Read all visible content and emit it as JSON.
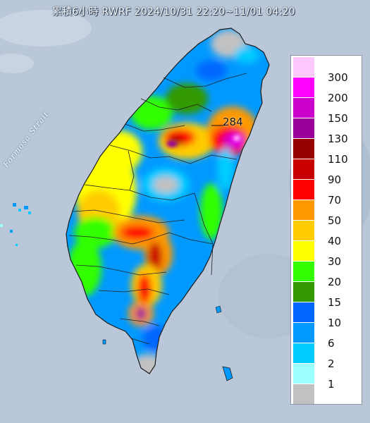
{
  "header": {
    "title": "累積6小時 RWRF 2024/10/31 22:20~11/01 04:20"
  },
  "map": {
    "strait_label": "Formosa Strait",
    "max_marker_value": "284"
  },
  "legend": {
    "items": [
      {
        "label": "300",
        "color": "#fdc8fe"
      },
      {
        "label": "200",
        "color": "#fe02fe"
      },
      {
        "label": "150",
        "color": "#cc00cc"
      },
      {
        "label": "130",
        "color": "#9a0099"
      },
      {
        "label": "110",
        "color": "#970000"
      },
      {
        "label": "90",
        "color": "#c90000"
      },
      {
        "label": "70",
        "color": "#fe0000"
      },
      {
        "label": "50",
        "color": "#fe9900"
      },
      {
        "label": "40",
        "color": "#ffcc00"
      },
      {
        "label": "30",
        "color": "#ffff00"
      },
      {
        "label": "20",
        "color": "#33ff00"
      },
      {
        "label": "15",
        "color": "#339900"
      },
      {
        "label": "10",
        "color": "#0066ff"
      },
      {
        "label": "6",
        "color": "#0099ff"
      },
      {
        "label": "2",
        "color": "#00ccff"
      },
      {
        "label": "1",
        "color": "#9bffff"
      },
      {
        "label": "",
        "color": "#c1c1c1"
      }
    ]
  },
  "colors": {
    "sea": "#b9c7d8",
    "land_border": "#222222"
  }
}
